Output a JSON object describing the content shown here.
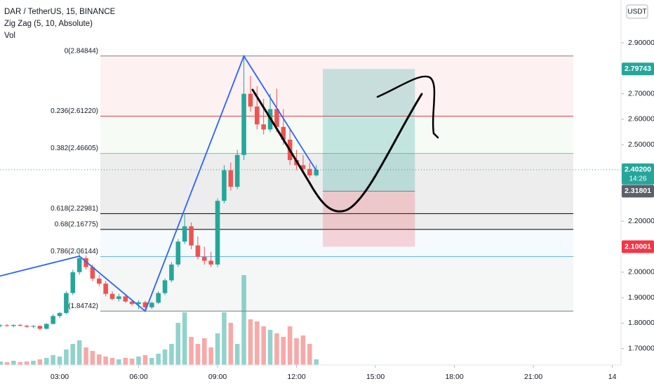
{
  "chart_data": {
    "type": "candlestick",
    "title": "DAR / TetherUS, 15, BINANCE",
    "indicators": [
      "Zig Zag (5, 10, Absolute)",
      "Vol"
    ],
    "currency": "USDT",
    "up_color": "#26a69a",
    "down_color": "#ef5350",
    "x": [
      0.75,
      1,
      1.25,
      1.5,
      1.75,
      2,
      2.25,
      2.5,
      2.75,
      3,
      3.25,
      3.5,
      3.75,
      4,
      4.25,
      4.5,
      4.75,
      5,
      5.25,
      5.5,
      5.75,
      6,
      6.25,
      6.5,
      6.75,
      7,
      7.25,
      7.5,
      7.75,
      8,
      8.25,
      8.5,
      8.75,
      9,
      9.25,
      9.5,
      9.75,
      10,
      10.25,
      10.5,
      10.75,
      11,
      11.25,
      11.5,
      11.75,
      12,
      12.25,
      12.5,
      12.75
    ],
    "open": [
      1.79,
      1.792,
      1.789,
      1.793,
      1.79,
      1.786,
      1.789,
      1.778,
      1.797,
      1.828,
      1.84,
      1.918,
      2.0,
      2.055,
      2.02,
      1.975,
      1.955,
      1.915,
      1.895,
      1.905,
      1.885,
      1.875,
      1.882,
      1.862,
      1.88,
      1.918,
      1.968,
      2.03,
      2.12,
      2.18,
      2.105,
      2.06,
      2.045,
      2.03,
      2.28,
      2.4,
      2.335,
      2.46,
      2.7,
      2.65,
      2.58,
      2.56,
      2.64,
      2.57,
      2.52,
      2.44,
      2.42,
      2.405,
      2.38
    ],
    "high": [
      1.795,
      1.796,
      1.795,
      1.797,
      1.794,
      1.792,
      1.791,
      1.8,
      1.835,
      1.845,
      1.925,
      2.01,
      2.095,
      2.065,
      2.03,
      1.99,
      1.965,
      1.925,
      1.915,
      1.91,
      1.892,
      1.89,
      1.888,
      1.885,
      1.925,
      1.975,
      2.04,
      2.13,
      2.23,
      2.195,
      2.14,
      2.1,
      2.08,
      2.29,
      2.42,
      2.43,
      2.48,
      2.848,
      2.77,
      2.73,
      2.68,
      2.7,
      2.72,
      2.64,
      2.56,
      2.48,
      2.46,
      2.43,
      2.42
    ],
    "low": [
      1.785,
      1.786,
      1.784,
      1.787,
      1.782,
      1.78,
      1.772,
      1.775,
      1.795,
      1.82,
      1.835,
      1.91,
      1.99,
      2.01,
      1.965,
      1.945,
      1.905,
      1.89,
      1.885,
      1.88,
      1.868,
      1.855,
      1.847,
      1.855,
      1.875,
      1.91,
      1.96,
      2.02,
      2.11,
      2.09,
      2.05,
      2.03,
      2.02,
      2.02,
      2.27,
      2.32,
      2.325,
      2.44,
      2.63,
      2.56,
      2.54,
      2.55,
      2.55,
      2.5,
      2.42,
      2.4,
      2.39,
      2.37,
      2.375
    ],
    "close": [
      1.792,
      1.789,
      1.793,
      1.79,
      1.786,
      1.789,
      1.778,
      1.797,
      1.828,
      1.84,
      1.918,
      2.0,
      2.055,
      2.02,
      1.975,
      1.955,
      1.915,
      1.895,
      1.905,
      1.885,
      1.875,
      1.882,
      1.862,
      1.88,
      1.918,
      1.968,
      2.03,
      2.12,
      2.18,
      2.105,
      2.06,
      2.045,
      2.03,
      2.28,
      2.4,
      2.335,
      2.46,
      2.7,
      2.65,
      2.58,
      2.56,
      2.64,
      2.57,
      2.52,
      2.44,
      2.42,
      2.405,
      2.38,
      2.402
    ],
    "volume": [
      5,
      4,
      6,
      4,
      5,
      6,
      8,
      10,
      14,
      12,
      22,
      30,
      35,
      25,
      20,
      15,
      12,
      10,
      8,
      10,
      9,
      12,
      14,
      10,
      16,
      22,
      30,
      60,
      75,
      40,
      30,
      38,
      25,
      45,
      75,
      60,
      30,
      128,
      65,
      62,
      55,
      50,
      45,
      40,
      55,
      38,
      42,
      30,
      8
    ],
    "xlim": [
      0.733,
      24.33
    ],
    "xticks": [
      {
        "value": 3,
        "label": "03:00"
      },
      {
        "value": 6,
        "label": "06:00"
      },
      {
        "value": 9,
        "label": "09:00"
      },
      {
        "value": 12,
        "label": "12:00"
      },
      {
        "value": 15,
        "label": "15:00"
      },
      {
        "value": 18,
        "label": "18:00"
      },
      {
        "value": 21,
        "label": "21:00"
      },
      {
        "value": 24,
        "label": "14"
      }
    ],
    "ylim": [
      1.636,
      3.068
    ],
    "yticks": [
      {
        "value": 2.9,
        "label": "2.90000"
      },
      {
        "value": 2.7,
        "label": "2.70000"
      },
      {
        "value": 2.6,
        "label": "2.60000"
      },
      {
        "value": 2.5,
        "label": "2.50000"
      },
      {
        "value": 2.2,
        "label": "2.20000"
      },
      {
        "value": 2.0,
        "label": "2.00000"
      },
      {
        "value": 1.9,
        "label": "1.90000"
      },
      {
        "value": 1.8,
        "label": "1.80000"
      },
      {
        "value": 1.7,
        "label": "1.70000"
      }
    ],
    "zigzag": {
      "color": "#2962ff",
      "x": [
        0.733,
        3.75,
        6.25,
        10.0,
        12.75
      ],
      "values": [
        1.985,
        2.063,
        1.847,
        2.848,
        2.399
      ]
    },
    "fib_levels": [
      {
        "label": "0(2.84844)",
        "value": 2.84844,
        "color": "#787b86"
      },
      {
        "label": "0.236(2.61220)",
        "value": 2.6122,
        "color": "#f23645"
      },
      {
        "label": "0.382(2.46605)",
        "value": 2.46605,
        "color": "#81c784"
      },
      {
        "label": "0.618(2.22981)",
        "value": 2.22981,
        "color": "#000000"
      },
      {
        "label": "0.68(2.16775)",
        "value": 2.16775,
        "color": "#000000"
      },
      {
        "label": "0.786(2.06144)",
        "value": 2.06144,
        "color": "#64b5f6"
      },
      {
        "label": "(1.84742)",
        "value": 1.84742,
        "color": "#787b86"
      }
    ],
    "position": {
      "x": [
        13.0,
        16.5
      ],
      "target": 2.79743,
      "entry": 2.31801,
      "stop": 2.10001
    },
    "price_badges": [
      {
        "value": 2.79743,
        "label": "2.79743",
        "color": "#26a69a"
      },
      {
        "value": 2.402,
        "label": "2.40200",
        "countdown": "14:26",
        "color": "#26a69a",
        "dotted": true
      },
      {
        "value": 2.31801,
        "label": "2.31801",
        "color": "#5d606b"
      },
      {
        "value": 2.10001,
        "label": "2.10001",
        "color": "#f23645"
      }
    ]
  }
}
